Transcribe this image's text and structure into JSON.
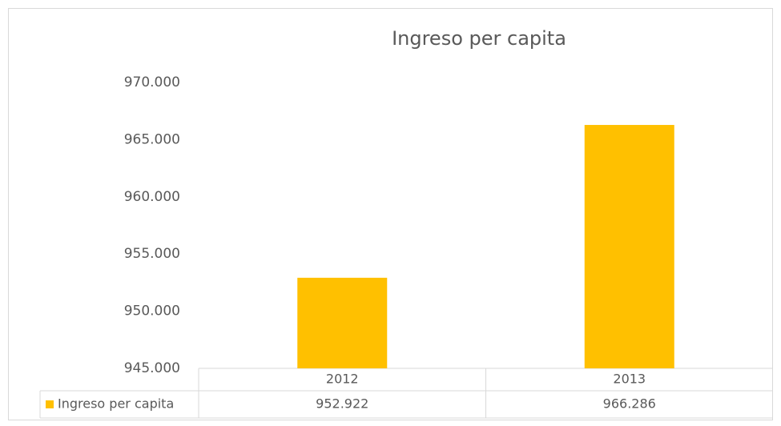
{
  "chart_data": {
    "type": "bar",
    "title": "Ingreso per capita",
    "categories": [
      "2012",
      "2013"
    ],
    "series": [
      {
        "name": "Ingreso per capita",
        "color": "#ffc000",
        "values": [
          952922,
          966286
        ],
        "value_labels": [
          "952.922",
          "966.286"
        ]
      }
    ],
    "ylim": [
      945000,
      970000
    ],
    "yticks": [
      {
        "value": 945000,
        "label": "945.000"
      },
      {
        "value": 950000,
        "label": "950.000"
      },
      {
        "value": 955000,
        "label": "955.000"
      },
      {
        "value": 960000,
        "label": "960.000"
      },
      {
        "value": 965000,
        "label": "965.000"
      },
      {
        "value": 970000,
        "label": "970.000"
      }
    ],
    "grid": false
  }
}
